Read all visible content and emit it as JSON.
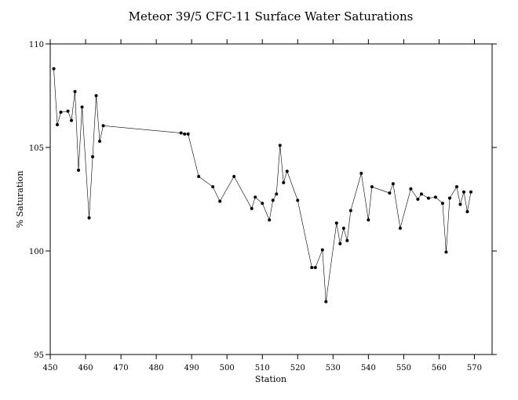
{
  "chart_data": {
    "type": "line",
    "title": "Meteor 39/5 CFC-11 Surface Water Saturations",
    "xlabel": "Station",
    "ylabel": "% Saturation",
    "xlim": [
      450,
      575
    ],
    "ylim": [
      95,
      110
    ],
    "xticks": [
      450,
      460,
      470,
      480,
      490,
      500,
      510,
      520,
      530,
      540,
      550,
      560,
      570
    ],
    "yticks": [
      95,
      100,
      105,
      110
    ],
    "grid": false,
    "markers": true,
    "series": [
      {
        "color": "#000000",
        "x": [
          451,
          452,
          453,
          455,
          456,
          457,
          458,
          459,
          461,
          462,
          463,
          464,
          465,
          487,
          488,
          489,
          492,
          496,
          498,
          502,
          507,
          508,
          510,
          512,
          513,
          514,
          515,
          516,
          517,
          520,
          524,
          525,
          527,
          528,
          531,
          532,
          533,
          534,
          535,
          538,
          540,
          541,
          546,
          547,
          549,
          552,
          554,
          555,
          557,
          559,
          561,
          562,
          563,
          565,
          566,
          567,
          568,
          569
        ],
        "y": [
          108.8,
          106.1,
          106.7,
          106.75,
          106.3,
          107.7,
          103.9,
          106.95,
          101.6,
          104.55,
          107.5,
          105.3,
          106.05,
          105.7,
          105.65,
          105.65,
          103.6,
          103.1,
          102.4,
          103.6,
          102.05,
          102.6,
          102.3,
          101.5,
          102.45,
          102.75,
          105.1,
          103.3,
          103.85,
          102.45,
          99.2,
          99.2,
          100.05,
          97.55,
          101.35,
          100.35,
          101.1,
          100.5,
          101.95,
          103.75,
          101.5,
          103.1,
          102.8,
          103.25,
          101.1,
          103.0,
          102.5,
          102.75,
          102.55,
          102.6,
          102.3,
          99.95,
          102.55,
          103.1,
          102.25,
          102.85,
          101.9,
          102.85
        ]
      }
    ]
  }
}
